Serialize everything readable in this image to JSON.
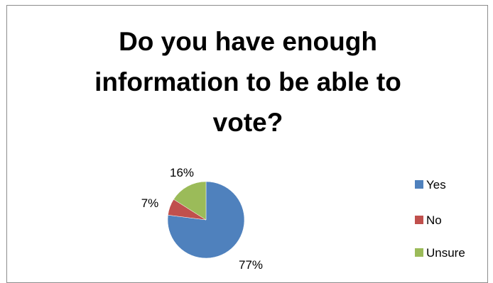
{
  "chart_data": {
    "type": "pie",
    "title": "Do you have enough information to be able to vote?",
    "categories": [
      "Yes",
      "No",
      "Unsure"
    ],
    "values": [
      77,
      7,
      16
    ],
    "data_labels": [
      "77%",
      "7%",
      "16%"
    ],
    "colors": [
      "#4F81BD",
      "#C0504D",
      "#9BBB59"
    ],
    "legend": {
      "position": "right",
      "entries": [
        "Yes",
        "No",
        "Unsure"
      ]
    }
  }
}
